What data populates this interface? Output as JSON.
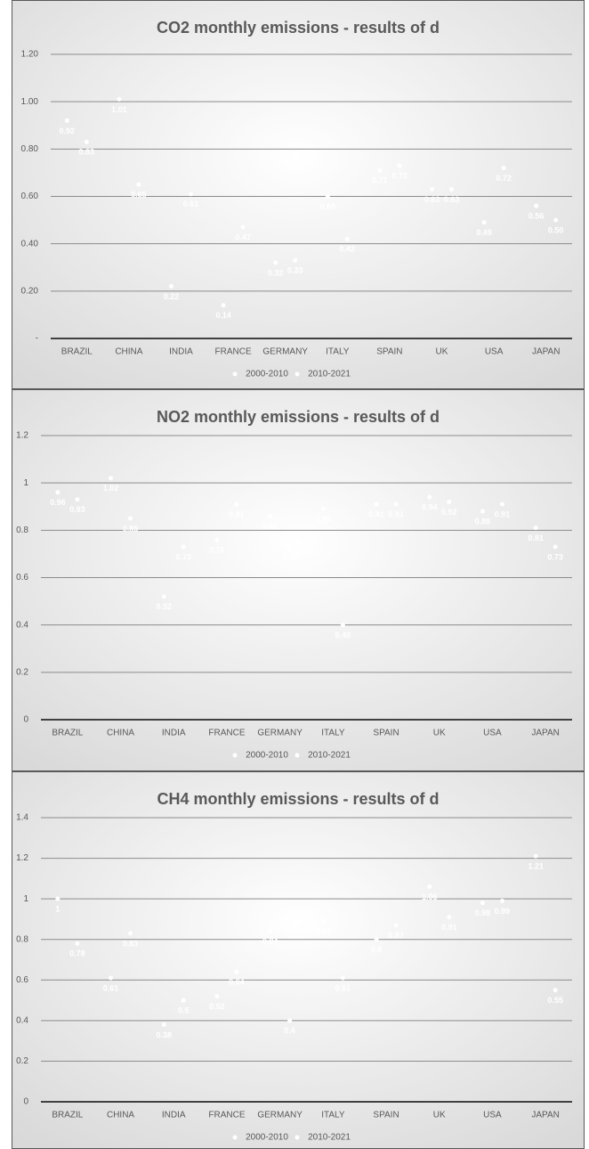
{
  "chart_data": [
    {
      "type": "scatter",
      "title": "CO2 monthly emissions - results of d",
      "categories": [
        "BRAZIL",
        "CHINA",
        "INDIA",
        "FRANCE",
        "GERMANY",
        "ITALY",
        "SPAIN",
        "UK",
        "USA",
        "JAPAN"
      ],
      "series": [
        {
          "name": "2000-2010",
          "color": "#ffffff",
          "values": [
            0.92,
            1.01,
            0.22,
            0.14,
            0.32,
            0.6,
            0.71,
            0.63,
            0.49,
            0.56
          ],
          "value_labels": [
            "0.92",
            "1.01",
            "0.22",
            "0.14",
            "0.32",
            "0.60",
            "0.71",
            "0.63",
            "0.49",
            "0.56"
          ]
        },
        {
          "name": "2010-2021",
          "color": "#ffffff",
          "values": [
            0.83,
            0.65,
            0.61,
            0.47,
            0.33,
            0.42,
            0.73,
            0.63,
            0.72,
            0.5
          ],
          "value_labels": [
            "0.83",
            "0.65",
            "0.61",
            "0.47",
            "0.33",
            "0.42",
            "0.73",
            "0.63",
            "0.72",
            "0.50"
          ]
        }
      ],
      "ylim": [
        0,
        1.2
      ],
      "yticks": [
        {
          "value": 0,
          "label": "-"
        },
        {
          "value": 0.2,
          "label": "0.20"
        },
        {
          "value": 0.4,
          "label": "0.40"
        },
        {
          "value": 0.6,
          "label": "0.60"
        },
        {
          "value": 0.8,
          "label": "0.80"
        },
        {
          "value": 1,
          "label": "1.00"
        },
        {
          "value": 1.2,
          "label": "1.20"
        }
      ],
      "grid": true
    },
    {
      "type": "scatter",
      "title": "NO2 monthly emissions - results of d",
      "categories": [
        "BRAZIL",
        "CHINA",
        "INDIA",
        "FRANCE",
        "GERMANY",
        "ITALY",
        "SPAIN",
        "UK",
        "USA",
        "JAPAN"
      ],
      "series": [
        {
          "name": "2000-2010",
          "color": "#ffffff",
          "values": [
            0.96,
            1.02,
            0.52,
            0.76,
            0.86,
            0.89,
            0.91,
            0.94,
            0.88,
            0.81
          ],
          "value_labels": [
            "0.96",
            "1.02",
            "0.52",
            "0.76",
            "0.86",
            "0.89",
            "0.91",
            "0.94",
            "0.88",
            "0.81"
          ]
        },
        {
          "name": "2010-2021",
          "color": "#ffffff",
          "values": [
            0.93,
            0.85,
            0.73,
            0.91,
            0.73,
            0.4,
            0.91,
            0.92,
            0.91,
            0.73
          ],
          "value_labels": [
            "0.93",
            "0.85",
            "0.73",
            "0.91",
            "0.73",
            "0.40",
            "0.91",
            "0.92",
            "0.91",
            "0.73"
          ]
        }
      ],
      "ylim": [
        0,
        1.2
      ],
      "yticks": [
        0,
        0.2,
        0.4,
        0.6,
        0.8,
        1,
        1.2
      ],
      "grid": true
    },
    {
      "type": "scatter",
      "title": "CH4 monthly emissions - results of d",
      "categories": [
        "BRAZIL",
        "CHINA",
        "INDIA",
        "FRANCE",
        "GERMANY",
        "ITALY",
        "SPAIN",
        "UK",
        "USA",
        "JAPAN"
      ],
      "series": [
        {
          "name": "2000-2010",
          "color": "#ffffff",
          "values": [
            1,
            0.61,
            0.38,
            0.52,
            0.84,
            0.89,
            0.8,
            1.06,
            0.98,
            1.21
          ]
        },
        {
          "name": "2010-2021",
          "color": "#ffffff",
          "values": [
            0.78,
            0.83,
            0.5,
            0.64,
            0.4,
            0.61,
            0.87,
            0.91,
            0.99,
            0.55
          ]
        }
      ],
      "ylim": [
        0,
        1.4
      ],
      "yticks": [
        0,
        0.2,
        0.4,
        0.6,
        0.8,
        1,
        1.2,
        1.4
      ],
      "grid": true
    }
  ]
}
